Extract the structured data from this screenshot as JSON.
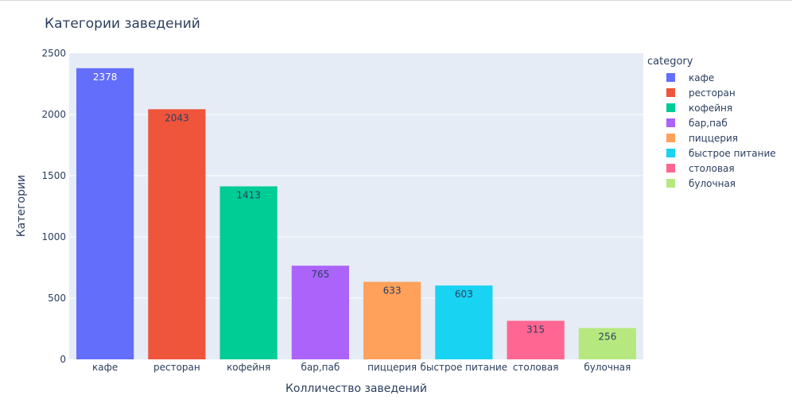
{
  "chart_data": {
    "type": "bar",
    "title": "Категории заведений",
    "xlabel": "Колличество заведений",
    "ylabel": "Категории",
    "categories": [
      "кафе",
      "ресторан",
      "кофейня",
      "бар,паб",
      "пиццерия",
      "быстрое питание",
      "столовая",
      "булочная"
    ],
    "values": [
      2378,
      2043,
      1413,
      765,
      633,
      603,
      315,
      256
    ],
    "data_labels": [
      "2378",
      "2043",
      "1413",
      "765",
      "633",
      "603",
      "315",
      "256"
    ],
    "colors": [
      "#636efa",
      "#ef553b",
      "#00cc96",
      "#ab63fa",
      "#ffa15a",
      "#19d3f3",
      "#ff6692",
      "#b6e880"
    ],
    "label_colors": [
      "#ffffff",
      "#2a3f5f",
      "#2a3f5f",
      "#2a3f5f",
      "#2a3f5f",
      "#2a3f5f",
      "#2a3f5f",
      "#2a3f5f"
    ],
    "ylim": [
      0,
      2500
    ],
    "yticks": [
      0,
      500,
      1000,
      1500,
      2000,
      2500
    ],
    "ytick_labels": [
      "0",
      "500",
      "1000",
      "1500",
      "2000",
      "2500"
    ],
    "grid": true,
    "legend": {
      "title": "category",
      "placement": "right"
    }
  },
  "style": {
    "plot_background": "#e5ecf6",
    "grid_color": "#ffffff",
    "text_color": "#2a3f5f"
  }
}
